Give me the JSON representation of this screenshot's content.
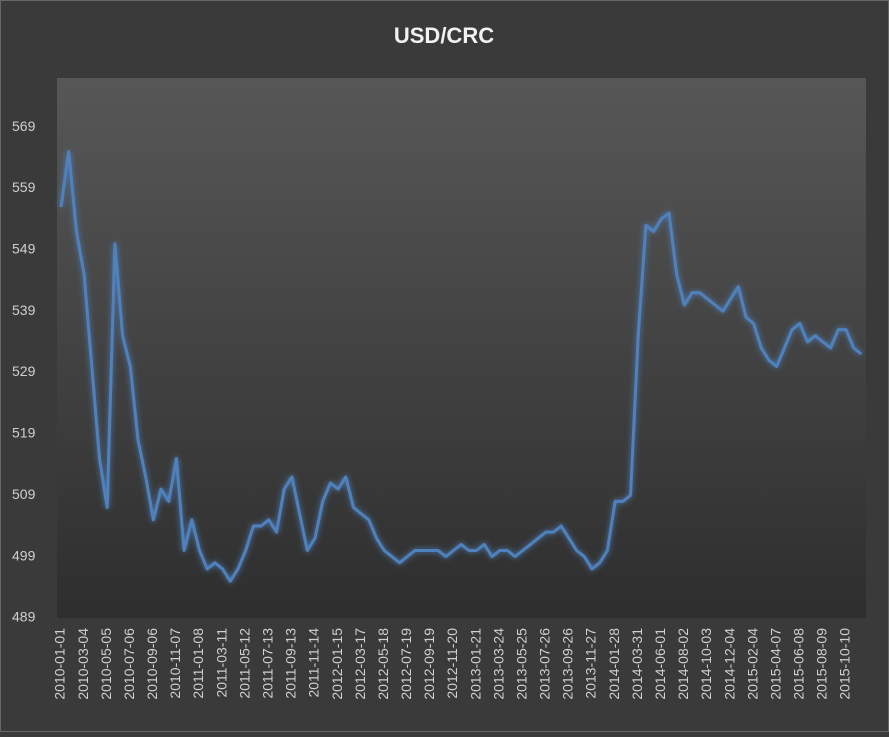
{
  "chart_data": {
    "type": "line",
    "title": "USD/CRC",
    "categories": [
      "2010-01-01",
      null,
      null,
      "2010-03-04",
      null,
      null,
      "2010-05-05",
      null,
      null,
      "2010-07-06",
      null,
      null,
      "2010-09-06",
      null,
      null,
      "2010-11-07",
      null,
      null,
      "2011-01-08",
      null,
      null,
      "2011-03-11",
      null,
      null,
      "2011-05-12",
      null,
      null,
      "2011-07-13",
      null,
      null,
      "2011-09-13",
      null,
      null,
      "2011-11-14",
      null,
      null,
      "2012-01-15",
      null,
      null,
      "2012-03-17",
      null,
      null,
      "2012-05-18",
      null,
      null,
      "2012-07-19",
      null,
      null,
      "2012-09-19",
      null,
      null,
      "2012-11-20",
      null,
      null,
      "2013-01-21",
      null,
      null,
      "2013-03-24",
      null,
      null,
      "2013-05-25",
      null,
      null,
      "2013-07-26",
      null,
      null,
      "2013-09-26",
      null,
      null,
      "2013-11-27",
      null,
      null,
      "2014-01-28",
      null,
      null,
      "2014-03-31",
      null,
      null,
      "2014-06-01",
      null,
      null,
      "2014-08-02",
      null,
      null,
      "2014-10-03",
      null,
      null,
      "2014-12-04",
      null,
      null,
      "2015-02-04",
      null,
      null,
      "2015-04-07",
      null,
      null,
      "2015-06-08",
      null,
      null,
      "2015-08-09",
      null,
      null,
      "2015-10-10",
      null,
      null
    ],
    "values": [
      556,
      565,
      552,
      545,
      530,
      515,
      507,
      550,
      535,
      530,
      518,
      512,
      505,
      510,
      508,
      515,
      500,
      505,
      500,
      497,
      498,
      497,
      495,
      497,
      500,
      504,
      504,
      505,
      503,
      510,
      512,
      506,
      500,
      502,
      508,
      511,
      510,
      512,
      507,
      506,
      505,
      502,
      500,
      499,
      498,
      499,
      500,
      500,
      500,
      500,
      499,
      500,
      501,
      500,
      500,
      501,
      499,
      500,
      500,
      499,
      500,
      501,
      502,
      503,
      503,
      504,
      502,
      500,
      499,
      497,
      498,
      500,
      508,
      508,
      509,
      535,
      553,
      552,
      554,
      555,
      545,
      540,
      542,
      542,
      541,
      540,
      539,
      541,
      543,
      538,
      537,
      533,
      531,
      530,
      533,
      536,
      537,
      534,
      535,
      534,
      533,
      536,
      536,
      533,
      532
    ],
    "color": "#4f81bd",
    "ylim": [
      489,
      577
    ],
    "yticks": [
      489,
      499,
      509,
      519,
      529,
      539,
      549,
      559,
      569
    ]
  }
}
